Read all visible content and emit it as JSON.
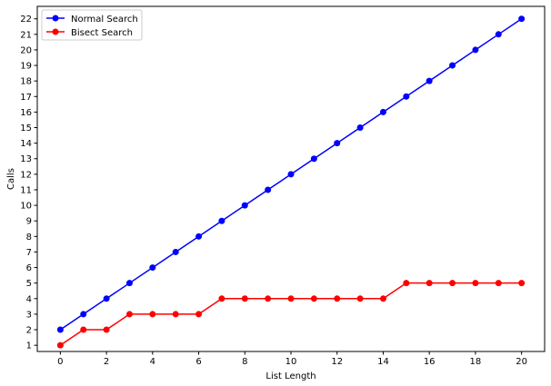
{
  "chart_data": {
    "type": "line",
    "title": "",
    "xlabel": "List Length",
    "ylabel": "Calls",
    "x": [
      0,
      1,
      2,
      3,
      4,
      5,
      6,
      7,
      8,
      9,
      10,
      11,
      12,
      13,
      14,
      15,
      16,
      17,
      18,
      19,
      20
    ],
    "xlim": [
      -1,
      21
    ],
    "ylim": [
      0.6,
      22.8
    ],
    "xticks": [
      0,
      2,
      4,
      6,
      8,
      10,
      12,
      14,
      16,
      18,
      20
    ],
    "yticks": [
      1,
      2,
      3,
      4,
      5,
      6,
      7,
      8,
      9,
      10,
      11,
      12,
      13,
      14,
      15,
      16,
      17,
      18,
      19,
      20,
      21,
      22
    ],
    "grid": false,
    "legend_position": "top-left",
    "series": [
      {
        "name": "Normal Search",
        "color": "#0000ff",
        "marker": "circle",
        "values": [
          2,
          3,
          4,
          5,
          6,
          7,
          8,
          9,
          10,
          11,
          12,
          13,
          14,
          15,
          16,
          17,
          18,
          19,
          20,
          21,
          22
        ]
      },
      {
        "name": "Bisect Search",
        "color": "#ff0000",
        "marker": "circle",
        "values": [
          1,
          2,
          2,
          3,
          3,
          3,
          3,
          4,
          4,
          4,
          4,
          4,
          4,
          4,
          4,
          5,
          5,
          5,
          5,
          5,
          5
        ]
      }
    ]
  }
}
